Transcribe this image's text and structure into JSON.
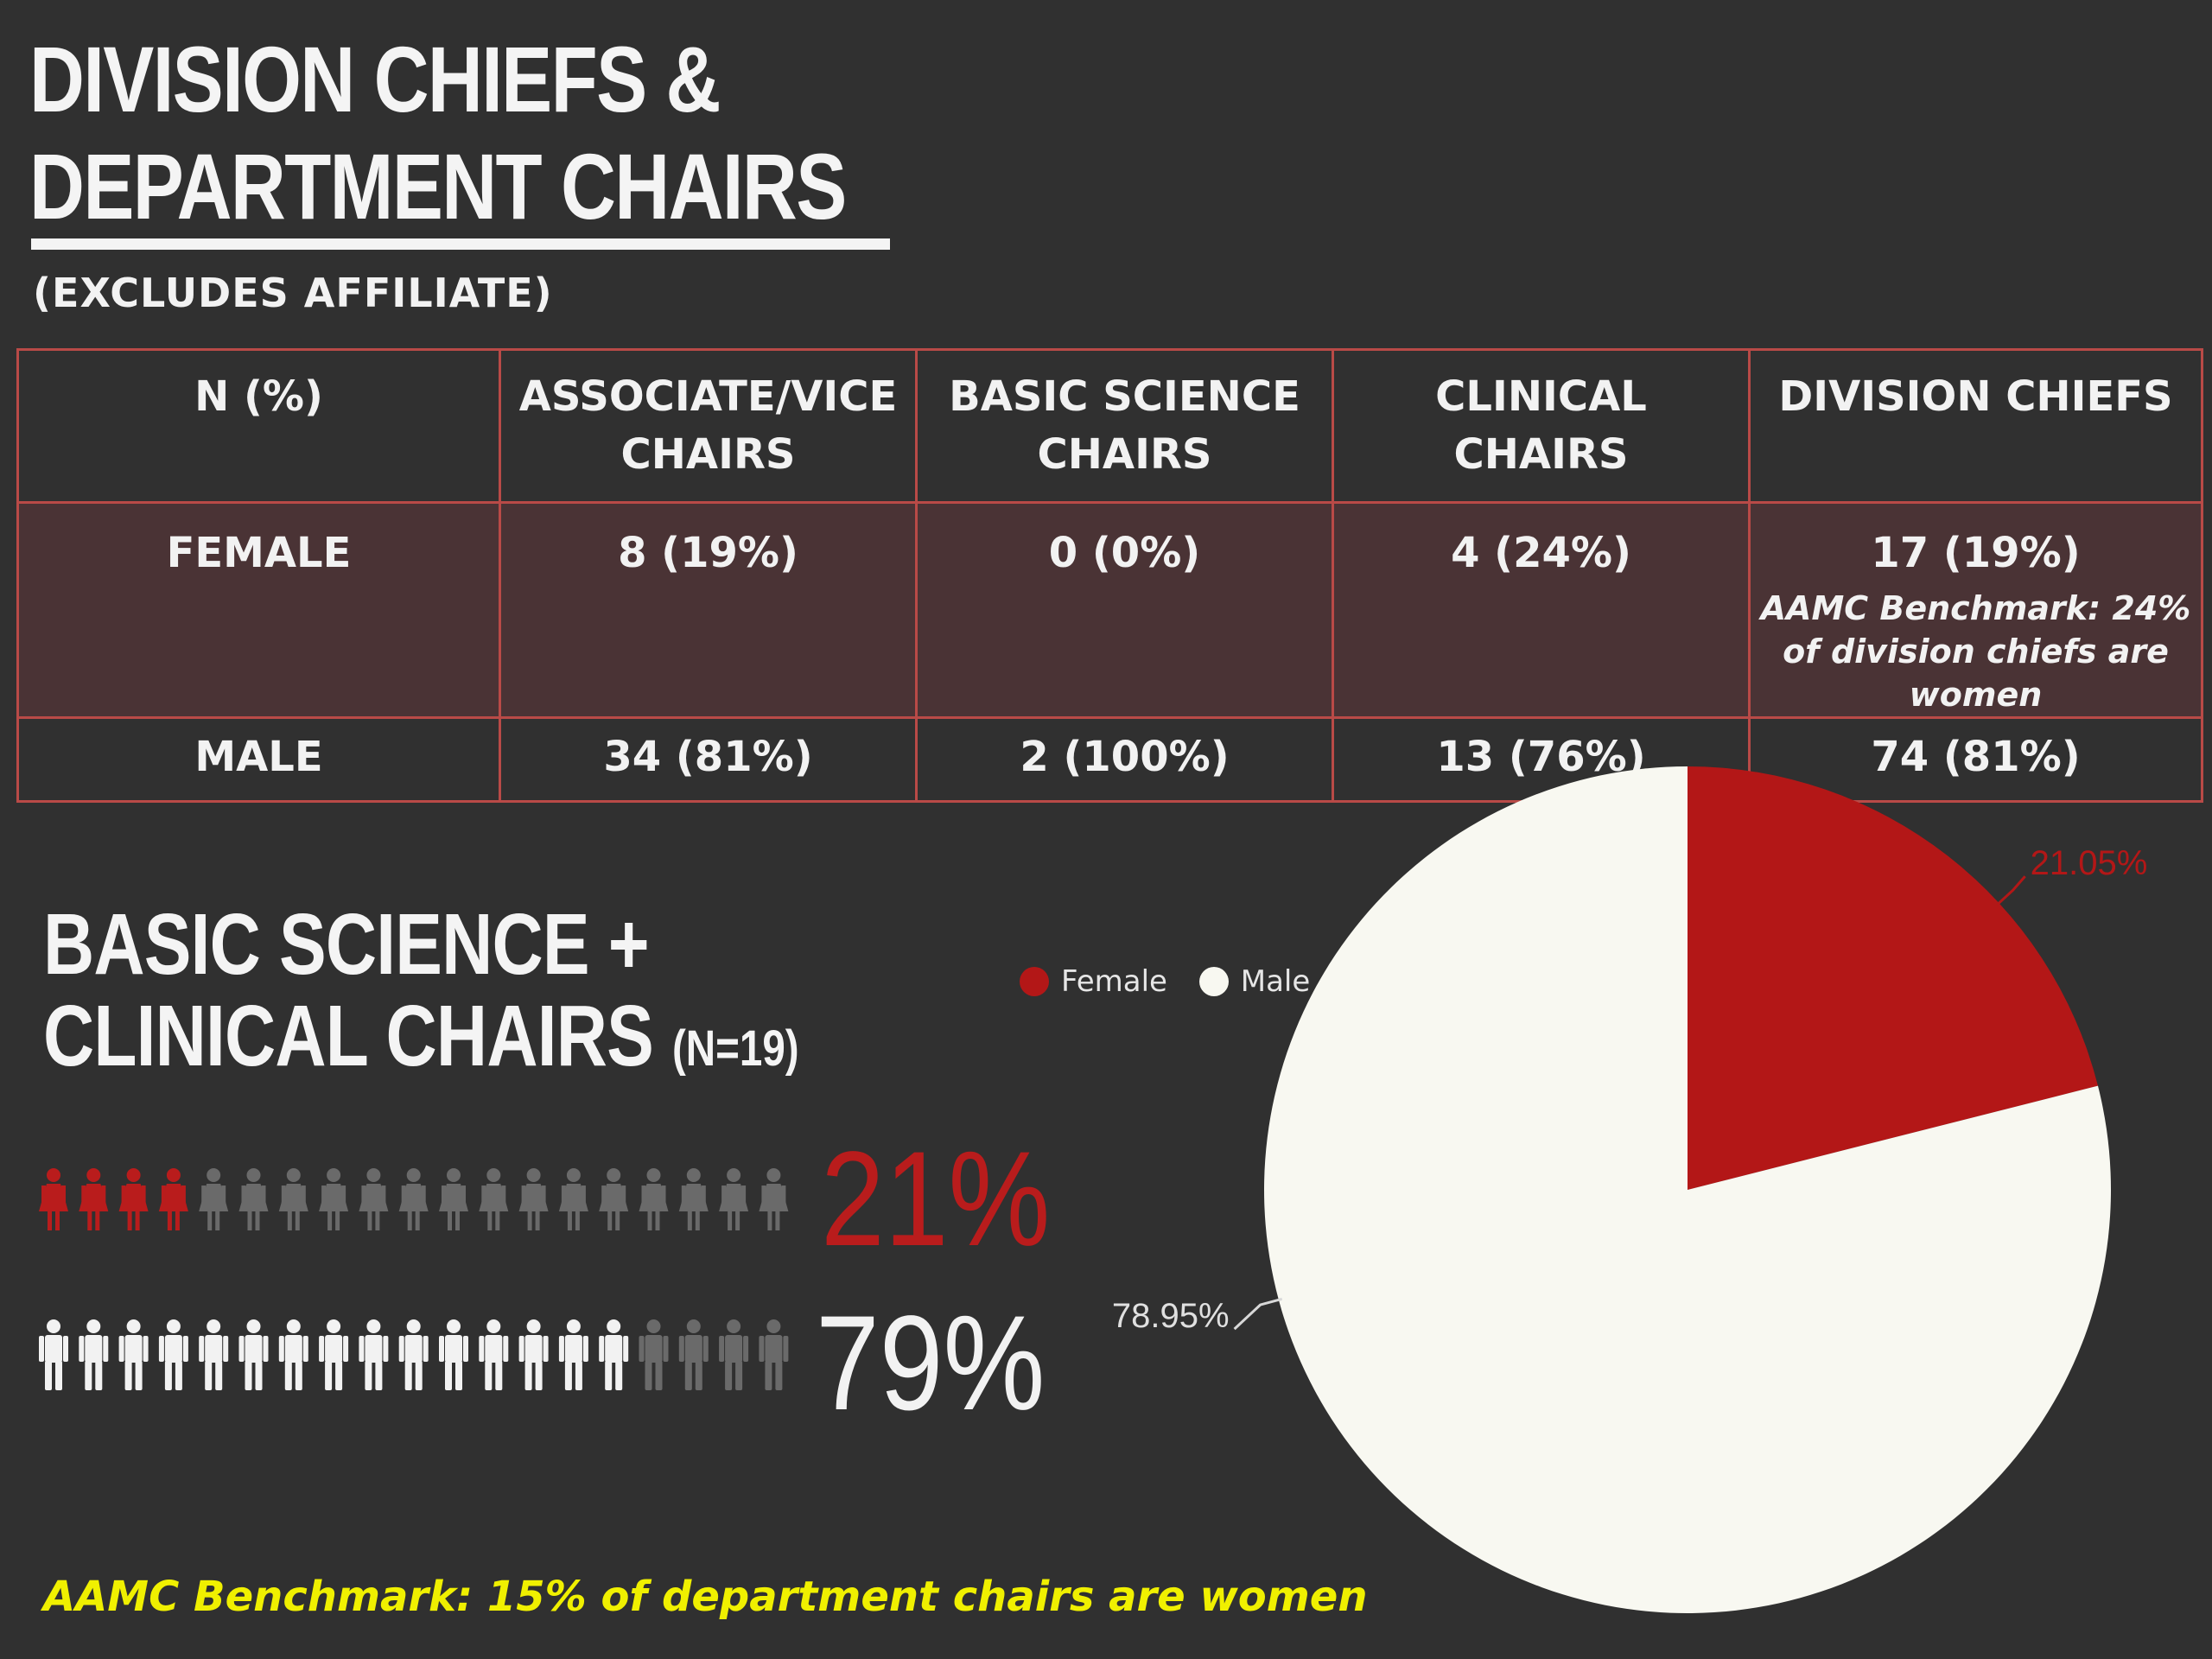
{
  "header": {
    "title_line1": "DIVISION CHIEFS &",
    "title_line2": "DEPARTMENT CHAIRS",
    "subtitle": "(EXCLUDES AFFILIATE)"
  },
  "table": {
    "columns": [
      "N (%)",
      "ASSOCIATE/VICE CHAIRS",
      "BASIC SCIENCE CHAIRS",
      "CLINICAL CHAIRS",
      "DIVISION CHIEFS"
    ],
    "rows": [
      {
        "label": "FEMALE",
        "cells": [
          "8 (19%)",
          "0 (0%)",
          "4 (24%)",
          "17 (19%)"
        ],
        "note": "AAMC Benchmark: 24% of division chiefs are women"
      },
      {
        "label": "MALE",
        "cells": [
          "34 (81%)",
          "2 (100%)",
          "13 (76%)",
          "74 (81%)"
        ]
      }
    ],
    "border_color": "#b94a47",
    "female_row_bg": "#4a3335"
  },
  "section": {
    "heading_line1": "BASIC SCIENCE +",
    "heading_line2": "CLINICAL CHAIRS",
    "n_label": "(N=19)"
  },
  "pictograph": {
    "icon": "person-icon",
    "total_icons": 19,
    "female": {
      "highlighted": 4,
      "percent_label": "21%",
      "color": "#b91c1c"
    },
    "male": {
      "highlighted": 15,
      "percent_label": "79%",
      "color": "#f2f2f2"
    },
    "inactive_color": "#6a6a6a"
  },
  "footer": {
    "benchmark": "AAMC Benchmark: 15% of department chairs are women",
    "color": "#f0f000"
  },
  "chart_data": {
    "type": "pie",
    "title": "",
    "labels": [
      "Female",
      "Male"
    ],
    "values": [
      21.05,
      78.95
    ],
    "data_labels": [
      "21.05%",
      "78.95%"
    ],
    "colors": [
      "#b31717",
      "#f8f8f1"
    ],
    "legend_position": "top-left",
    "start_angle": "12 o'clock, clockwise"
  }
}
